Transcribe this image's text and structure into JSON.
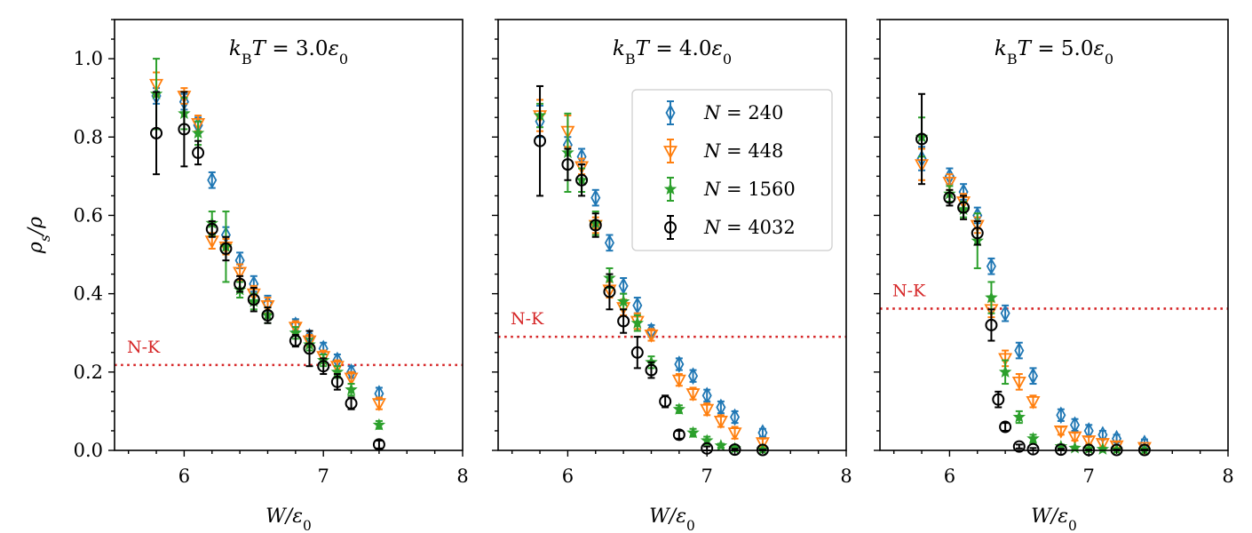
{
  "chart_data": {
    "type": "scatter",
    "xlabel": "W/ε₀",
    "ylabel": "ρs/ρ",
    "xlim": [
      5.5,
      8.0
    ],
    "ylim": [
      0.0,
      1.1
    ],
    "xticks": [
      6,
      7,
      8
    ],
    "yticks": [
      0.0,
      0.2,
      0.4,
      0.6,
      0.8,
      1.0
    ],
    "reference_line_label": "N-K",
    "reference_line_color": "#d62728",
    "legend": {
      "location": "upper-right of middle panel",
      "entries": [
        "N = 240",
        "N = 448",
        "N = 1560",
        "N = 4032"
      ]
    },
    "series_styles": [
      {
        "name": "N = 240",
        "color": "#1f77b4",
        "marker": "thin-diamond"
      },
      {
        "name": "N = 448",
        "color": "#ff7f0e",
        "marker": "triangle-down"
      },
      {
        "name": "N = 1560",
        "color": "#2ca02c",
        "marker": "star"
      },
      {
        "name": "N = 4032",
        "color": "#000000",
        "marker": "circle"
      }
    ],
    "panels": [
      {
        "title": "kB T = 3.0ε₀",
        "nk_value": 0.218,
        "series": [
          {
            "name": "N = 240",
            "x": [
              5.8,
              6.0,
              6.1,
              6.2,
              6.3,
              6.4,
              6.5,
              6.6,
              6.8,
              6.9,
              7.0,
              7.1,
              7.2,
              7.4
            ],
            "y": [
              0.905,
              0.89,
              0.83,
              0.69,
              0.55,
              0.485,
              0.425,
              0.375,
              0.32,
              0.29,
              0.26,
              0.23,
              0.2,
              0.145
            ],
            "err": [
              0.02,
              0.02,
              0.02,
              0.02,
              0.02,
              0.02,
              0.02,
              0.02,
              0.015,
              0.015,
              0.015,
              0.015,
              0.015,
              0.015
            ]
          },
          {
            "name": "N = 448",
            "x": [
              5.8,
              6.0,
              6.1,
              6.2,
              6.3,
              6.4,
              6.5,
              6.6,
              6.8,
              6.9,
              7.0,
              7.1,
              7.2,
              7.4
            ],
            "y": [
              0.935,
              0.905,
              0.835,
              0.535,
              0.52,
              0.455,
              0.4,
              0.37,
              0.315,
              0.28,
              0.24,
              0.215,
              0.185,
              0.12
            ],
            "err": [
              0.03,
              0.02,
              0.02,
              0.02,
              0.02,
              0.02,
              0.02,
              0.02,
              0.015,
              0.015,
              0.015,
              0.015,
              0.015,
              0.015
            ]
          },
          {
            "name": "N = 1560",
            "x": [
              5.8,
              6.0,
              6.1,
              6.2,
              6.3,
              6.4,
              6.5,
              6.6,
              6.8,
              6.9,
              7.0,
              7.1,
              7.2,
              7.4
            ],
            "y": [
              0.91,
              0.86,
              0.81,
              0.58,
              0.52,
              0.41,
              0.38,
              0.345,
              0.3,
              0.27,
              0.23,
              0.2,
              0.155,
              0.065
            ],
            "err": [
              0.09,
              0.04,
              0.03,
              0.03,
              0.09,
              0.02,
              0.02,
              0.02,
              0.015,
              0.015,
              0.015,
              0.015,
              0.015,
              0.01
            ]
          },
          {
            "name": "N = 4032",
            "x": [
              5.8,
              6.0,
              6.1,
              6.2,
              6.3,
              6.4,
              6.5,
              6.6,
              6.8,
              6.9,
              7.0,
              7.1,
              7.2,
              7.4
            ],
            "y": [
              0.81,
              0.82,
              0.76,
              0.565,
              0.515,
              0.425,
              0.385,
              0.345,
              0.28,
              0.26,
              0.215,
              0.175,
              0.12,
              0.015
            ],
            "err": [
              0.105,
              0.095,
              0.03,
              0.02,
              0.03,
              0.02,
              0.03,
              0.02,
              0.015,
              0.045,
              0.02,
              0.02,
              0.015,
              0.01
            ]
          }
        ]
      },
      {
        "title": "kB T = 4.0ε₀",
        "nk_value": 0.29,
        "series": [
          {
            "name": "N = 240",
            "x": [
              5.8,
              6.0,
              6.1,
              6.2,
              6.3,
              6.4,
              6.5,
              6.6,
              6.8,
              6.9,
              7.0,
              7.1,
              7.2,
              7.4
            ],
            "y": [
              0.84,
              0.78,
              0.75,
              0.645,
              0.53,
              0.42,
              0.37,
              0.305,
              0.22,
              0.19,
              0.14,
              0.11,
              0.085,
              0.045
            ],
            "err": [
              0.04,
              0.02,
              0.02,
              0.02,
              0.02,
              0.02,
              0.02,
              0.015,
              0.015,
              0.015,
              0.015,
              0.015,
              0.015,
              0.01
            ]
          },
          {
            "name": "N = 448",
            "x": [
              5.8,
              6.0,
              6.1,
              6.2,
              6.3,
              6.4,
              6.5,
              6.6,
              6.8,
              6.9,
              7.0,
              7.1,
              7.2,
              7.4
            ],
            "y": [
              0.855,
              0.815,
              0.725,
              0.575,
              0.41,
              0.365,
              0.33,
              0.295,
              0.18,
              0.145,
              0.105,
              0.075,
              0.045,
              0.02
            ],
            "err": [
              0.04,
              0.04,
              0.02,
              0.02,
              0.02,
              0.02,
              0.02,
              0.015,
              0.015,
              0.015,
              0.015,
              0.015,
              0.015,
              0.01
            ]
          },
          {
            "name": "N = 1560",
            "x": [
              5.8,
              6.0,
              6.1,
              6.2,
              6.3,
              6.4,
              6.5,
              6.6,
              6.8,
              6.9,
              7.0,
              7.1,
              7.2,
              7.4
            ],
            "y": [
              0.855,
              0.76,
              0.69,
              0.58,
              0.44,
              0.38,
              0.325,
              0.225,
              0.105,
              0.045,
              0.025,
              0.012,
              0.005,
              0.002
            ],
            "err": [
              0.03,
              0.1,
              0.03,
              0.03,
              0.025,
              0.02,
              0.02,
              0.015,
              0.01,
              0.01,
              0.01,
              0.005,
              0.005,
              0.002
            ]
          },
          {
            "name": "N = 4032",
            "x": [
              5.8,
              6.0,
              6.1,
              6.2,
              6.3,
              6.4,
              6.5,
              6.6,
              6.7,
              6.8,
              7.0,
              7.2,
              7.4
            ],
            "y": [
              0.79,
              0.73,
              0.69,
              0.575,
              0.405,
              0.33,
              0.25,
              0.205,
              0.125,
              0.04,
              0.005,
              0.002,
              0.001
            ],
            "err": [
              0.14,
              0.04,
              0.04,
              0.03,
              0.045,
              0.03,
              0.04,
              0.02,
              0.015,
              0.01,
              0.005,
              0.002,
              0.001
            ]
          }
        ]
      },
      {
        "title": "kB T = 5.0ε₀",
        "nk_value": 0.362,
        "series": [
          {
            "name": "N = 240",
            "x": [
              5.8,
              6.0,
              6.1,
              6.2,
              6.3,
              6.4,
              6.5,
              6.6,
              6.8,
              6.9,
              7.0,
              7.1,
              7.2,
              7.4
            ],
            "y": [
              0.745,
              0.7,
              0.66,
              0.6,
              0.47,
              0.35,
              0.255,
              0.19,
              0.09,
              0.065,
              0.05,
              0.04,
              0.03,
              0.018
            ],
            "err": [
              0.03,
              0.02,
              0.02,
              0.02,
              0.02,
              0.02,
              0.02,
              0.02,
              0.015,
              0.015,
              0.015,
              0.01,
              0.01,
              0.01
            ]
          },
          {
            "name": "N = 448",
            "x": [
              5.8,
              6.0,
              6.1,
              6.2,
              6.3,
              6.4,
              6.5,
              6.6,
              6.8,
              6.9,
              7.0,
              7.1,
              7.2,
              7.4
            ],
            "y": [
              0.73,
              0.685,
              0.635,
              0.575,
              0.36,
              0.235,
              0.175,
              0.125,
              0.05,
              0.035,
              0.025,
              0.018,
              0.012,
              0.008
            ],
            "err": [
              0.04,
              0.02,
              0.02,
              0.02,
              0.02,
              0.02,
              0.02,
              0.015,
              0.01,
              0.01,
              0.01,
              0.01,
              0.01,
              0.005
            ]
          },
          {
            "name": "N = 1560",
            "x": [
              5.8,
              6.0,
              6.1,
              6.2,
              6.3,
              6.4,
              6.5,
              6.6,
              6.8,
              6.9,
              7.0,
              7.1,
              7.2,
              7.4
            ],
            "y": [
              0.8,
              0.655,
              0.615,
              0.535,
              0.39,
              0.2,
              0.085,
              0.03,
              0.01,
              0.006,
              0.004,
              0.003,
              0.002,
              0.001
            ],
            "err": [
              0.05,
              0.02,
              0.02,
              0.07,
              0.04,
              0.03,
              0.015,
              0.01,
              0.005,
              0.004,
              0.003,
              0.002,
              0.002,
              0.001
            ]
          },
          {
            "name": "N = 4032",
            "x": [
              5.8,
              6.0,
              6.1,
              6.2,
              6.3,
              6.35,
              6.4,
              6.5,
              6.6,
              6.8,
              7.0,
              7.2,
              7.4
            ],
            "y": [
              0.795,
              0.645,
              0.62,
              0.555,
              0.32,
              0.13,
              0.06,
              0.01,
              0.003,
              0.002,
              0.001,
              0.001,
              0.001
            ],
            "err": [
              0.115,
              0.02,
              0.03,
              0.03,
              0.04,
              0.02,
              0.01,
              0.005,
              0.003,
              0.002,
              0.001,
              0.001,
              0.001
            ]
          }
        ]
      }
    ]
  }
}
